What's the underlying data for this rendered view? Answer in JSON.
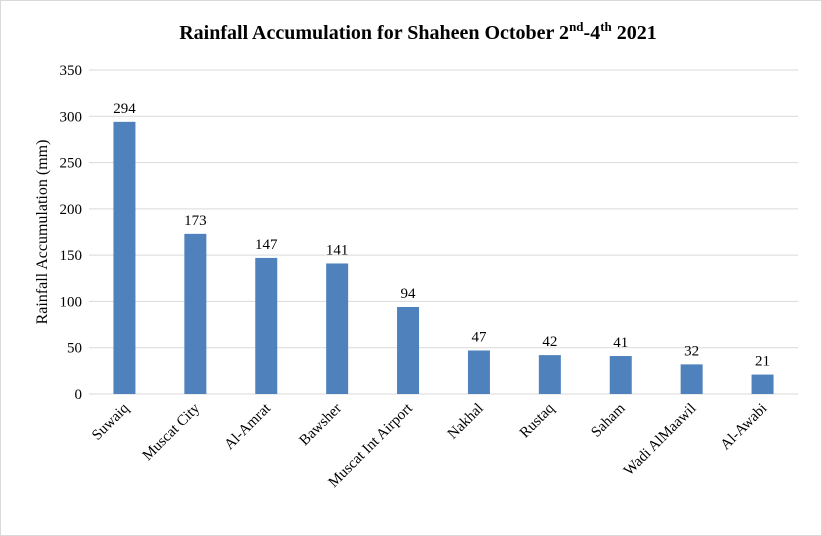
{
  "chart_data": {
    "type": "bar",
    "title": {
      "main": "Rainfall Accumulation for Shaheen October 2",
      "sup1": "nd",
      "mid": "-4",
      "sup2": "th",
      "end": " 2021"
    },
    "xlabel": "",
    "ylabel": "Rainfall Accumulation (mm)",
    "ylim": [
      0,
      350
    ],
    "yticks": [
      0,
      50,
      100,
      150,
      200,
      250,
      300,
      350
    ],
    "grid": true,
    "legend": "none",
    "categories": [
      "Suwaiq",
      "Muscat City",
      "Al-Amrat",
      "Bawsher",
      "Muscat Int Airport",
      "Nakhal",
      "Rustaq",
      "Saham",
      "Wadi AlMaawil",
      "Al-Awabi"
    ],
    "values": [
      294,
      173,
      147,
      141,
      94,
      47,
      42,
      41,
      32,
      21
    ],
    "bar_color": "#4f81bd",
    "grid_color": "#d9d9d9"
  }
}
